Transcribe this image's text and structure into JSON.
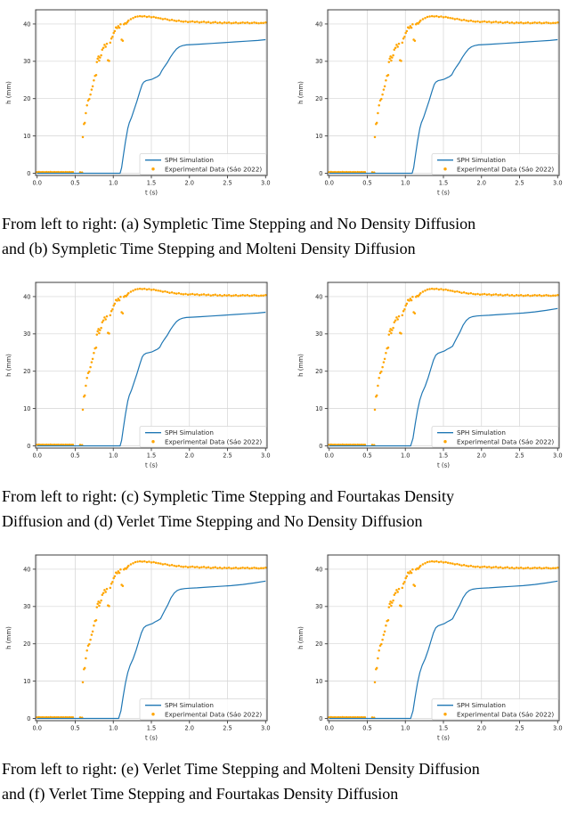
{
  "captions": [
    {
      "lines": [
        "From left to right: (a) Sympletic Time Stepping and No Density Diffusion",
        "and (b) Sympletic Time Stepping and Molteni Density Diffusion"
      ]
    },
    {
      "lines": [
        "From left to right: (c) Sympletic Time Stepping and Fourtakas Density",
        "Diffusion and (d) Verlet Time Stepping and No Density Diffusion"
      ]
    },
    {
      "lines": [
        "From left to right: (e) Verlet Time Stepping and Molteni Density Diffusion",
        "and (f) Verlet Time Stepping and Fourtakas Density Diffusion"
      ]
    }
  ],
  "chart_style": {
    "sim_color": "#1f77b4",
    "exp_color": "#FFA500",
    "grid_color": "#d4d4d4",
    "spine_color": "#3c3c3c",
    "tick_color": "#3c3c3c",
    "tick_label_color": "#262626",
    "legend_border": "#d5d5d5",
    "legend_bg": "#ffffff",
    "legend_text_color": "#262626"
  },
  "chart_data": [
    {
      "panel": "a",
      "type": "line+scatter",
      "xlabel": "t (s)",
      "ylabel": "h (mm)",
      "xlim": [
        -0.02,
        3.02
      ],
      "ylim": [
        -0.6,
        43.8
      ],
      "xticks": [
        0,
        0.5,
        1,
        1.5,
        2,
        2.5,
        3
      ],
      "xtick_labels": [
        "0.0",
        "0.5",
        "1.0",
        "1.5",
        "2.0",
        "2.5",
        "3.0"
      ],
      "yticks": [
        0,
        10,
        20,
        30,
        40
      ],
      "ytick_labels": [
        "0",
        "10",
        "20",
        "30",
        "40"
      ],
      "grid": true,
      "legend_position": "lower right",
      "legend": [
        "SPH Simulation",
        "Experimental Data (Sáo 2022)"
      ],
      "sim_series": "sim_symplectic",
      "exp_series": "experimental"
    },
    {
      "panel": "b",
      "type": "line+scatter",
      "xlabel": "t (s)",
      "ylabel": "h (mm)",
      "xlim": [
        -0.02,
        3.02
      ],
      "ylim": [
        -0.6,
        43.8
      ],
      "xticks": [
        0,
        0.5,
        1,
        1.5,
        2,
        2.5,
        3
      ],
      "xtick_labels": [
        "0.0",
        "0.5",
        "1.0",
        "1.5",
        "2.0",
        "2.5",
        "3.0"
      ],
      "yticks": [
        0,
        10,
        20,
        30,
        40
      ],
      "ytick_labels": [
        "0",
        "10",
        "20",
        "30",
        "40"
      ],
      "grid": true,
      "legend_position": "lower right",
      "legend": [
        "SPH Simulation",
        "Experimental Data (Sáo 2022)"
      ],
      "sim_series": "sim_symplectic",
      "exp_series": "experimental"
    },
    {
      "panel": "c",
      "type": "line+scatter",
      "xlabel": "t (s)",
      "ylabel": "h (mm)",
      "xlim": [
        -0.02,
        3.02
      ],
      "ylim": [
        -0.6,
        43.8
      ],
      "xticks": [
        0,
        0.5,
        1,
        1.5,
        2,
        2.5,
        3
      ],
      "xtick_labels": [
        "0.0",
        "0.5",
        "1.0",
        "1.5",
        "2.0",
        "2.5",
        "3.0"
      ],
      "yticks": [
        0,
        10,
        20,
        30,
        40
      ],
      "ytick_labels": [
        "0",
        "10",
        "20",
        "30",
        "40"
      ],
      "grid": true,
      "legend_position": "lower right",
      "legend": [
        "SPH Simulation",
        "Experimental Data (Sáo 2022)"
      ],
      "sim_series": "sim_symplectic",
      "exp_series": "experimental"
    },
    {
      "panel": "d",
      "type": "line+scatter",
      "xlabel": "t (s)",
      "ylabel": "h (mm)",
      "xlim": [
        -0.02,
        3.02
      ],
      "ylim": [
        -0.6,
        43.8
      ],
      "xticks": [
        0,
        0.5,
        1,
        1.5,
        2,
        2.5,
        3
      ],
      "xtick_labels": [
        "0.0",
        "0.5",
        "1.0",
        "1.5",
        "2.0",
        "2.5",
        "3.0"
      ],
      "yticks": [
        0,
        10,
        20,
        30,
        40
      ],
      "ytick_labels": [
        "0",
        "10",
        "20",
        "30",
        "40"
      ],
      "grid": true,
      "legend_position": "lower right",
      "legend": [
        "SPH Simulation",
        "Experimental Data (Sáo 2022)"
      ],
      "sim_series": "sim_verlet",
      "exp_series": "experimental"
    },
    {
      "panel": "e",
      "type": "line+scatter",
      "xlabel": "t (s)",
      "ylabel": "h (mm)",
      "xlim": [
        -0.02,
        3.02
      ],
      "ylim": [
        -0.6,
        43.8
      ],
      "xticks": [
        0,
        0.5,
        1,
        1.5,
        2,
        2.5,
        3
      ],
      "xtick_labels": [
        "0.0",
        "0.5",
        "1.0",
        "1.5",
        "2.0",
        "2.5",
        "3.0"
      ],
      "yticks": [
        0,
        10,
        20,
        30,
        40
      ],
      "ytick_labels": [
        "0",
        "10",
        "20",
        "30",
        "40"
      ],
      "grid": true,
      "legend_position": "lower right",
      "legend": [
        "SPH Simulation",
        "Experimental Data (Sáo 2022)"
      ],
      "sim_series": "sim_verlet",
      "exp_series": "experimental"
    },
    {
      "panel": "f",
      "type": "line+scatter",
      "xlabel": "t (s)",
      "ylabel": "h (mm)",
      "xlim": [
        -0.02,
        3.02
      ],
      "ylim": [
        -0.6,
        43.8
      ],
      "xticks": [
        0,
        0.5,
        1,
        1.5,
        2,
        2.5,
        3
      ],
      "xtick_labels": [
        "0.0",
        "0.5",
        "1.0",
        "1.5",
        "2.0",
        "2.5",
        "3.0"
      ],
      "yticks": [
        0,
        10,
        20,
        30,
        40
      ],
      "ytick_labels": [
        "0",
        "10",
        "20",
        "30",
        "40"
      ],
      "grid": true,
      "legend_position": "lower right",
      "legend": [
        "SPH Simulation",
        "Experimental Data (Sáo 2022)"
      ],
      "sim_series": "sim_verlet",
      "exp_series": "experimental"
    }
  ],
  "series": {
    "sim_symplectic": [
      [
        0.0,
        0
      ],
      [
        1.09,
        0
      ],
      [
        1.11,
        1.5
      ],
      [
        1.13,
        4.5
      ],
      [
        1.16,
        8.5
      ],
      [
        1.19,
        12.0
      ],
      [
        1.21,
        13.5
      ],
      [
        1.24,
        15.0
      ],
      [
        1.27,
        16.8
      ],
      [
        1.31,
        19.3
      ],
      [
        1.35,
        22.0
      ],
      [
        1.38,
        23.8
      ],
      [
        1.4,
        24.4
      ],
      [
        1.43,
        24.8
      ],
      [
        1.47,
        25.0
      ],
      [
        1.51,
        25.2
      ],
      [
        1.55,
        25.6
      ],
      [
        1.58,
        25.9
      ],
      [
        1.61,
        26.4
      ],
      [
        1.64,
        27.6
      ],
      [
        1.67,
        28.5
      ],
      [
        1.71,
        29.7
      ],
      [
        1.75,
        31.1
      ],
      [
        1.79,
        32.3
      ],
      [
        1.83,
        33.3
      ],
      [
        1.87,
        33.9
      ],
      [
        1.91,
        34.2
      ],
      [
        1.96,
        34.4
      ],
      [
        2.05,
        34.5
      ],
      [
        2.15,
        34.6
      ],
      [
        2.3,
        34.8
      ],
      [
        2.45,
        35.0
      ],
      [
        2.6,
        35.2
      ],
      [
        2.75,
        35.4
      ],
      [
        2.9,
        35.6
      ],
      [
        3.0,
        35.8
      ]
    ],
    "sim_verlet": [
      [
        0.0,
        0
      ],
      [
        1.07,
        0
      ],
      [
        1.1,
        2.0
      ],
      [
        1.13,
        6.0
      ],
      [
        1.16,
        9.5
      ],
      [
        1.19,
        12.3
      ],
      [
        1.22,
        14.2
      ],
      [
        1.26,
        16.0
      ],
      [
        1.3,
        18.3
      ],
      [
        1.34,
        21.0
      ],
      [
        1.37,
        23.0
      ],
      [
        1.4,
        24.3
      ],
      [
        1.43,
        24.8
      ],
      [
        1.47,
        25.1
      ],
      [
        1.51,
        25.4
      ],
      [
        1.55,
        25.9
      ],
      [
        1.59,
        26.3
      ],
      [
        1.62,
        26.7
      ],
      [
        1.65,
        27.9
      ],
      [
        1.68,
        29.1
      ],
      [
        1.72,
        30.6
      ],
      [
        1.76,
        32.4
      ],
      [
        1.8,
        33.6
      ],
      [
        1.84,
        34.3
      ],
      [
        1.88,
        34.6
      ],
      [
        1.94,
        34.8
      ],
      [
        2.0,
        34.9
      ],
      [
        2.1,
        35.0
      ],
      [
        2.25,
        35.2
      ],
      [
        2.4,
        35.4
      ],
      [
        2.55,
        35.6
      ],
      [
        2.7,
        35.9
      ],
      [
        2.85,
        36.3
      ],
      [
        3.0,
        36.8
      ]
    ],
    "experimental": [
      [
        0.0,
        0.3
      ],
      [
        0.025,
        0.35
      ],
      [
        0.05,
        0.3
      ],
      [
        0.075,
        0.32
      ],
      [
        0.1,
        0.28
      ],
      [
        0.125,
        0.33
      ],
      [
        0.15,
        0.3
      ],
      [
        0.175,
        0.35
      ],
      [
        0.2,
        0.3
      ],
      [
        0.225,
        0.32
      ],
      [
        0.25,
        0.28
      ],
      [
        0.275,
        0.33
      ],
      [
        0.3,
        0.3
      ],
      [
        0.325,
        0.34
      ],
      [
        0.35,
        0.3
      ],
      [
        0.375,
        0.32
      ],
      [
        0.4,
        0.29
      ],
      [
        0.425,
        0.33
      ],
      [
        0.45,
        0.3
      ],
      [
        0.47,
        0.31
      ],
      [
        0.565,
        0.25
      ],
      [
        0.59,
        0.2
      ],
      [
        0.6,
        9.7
      ],
      [
        0.615,
        13.2
      ],
      [
        0.625,
        13.5
      ],
      [
        0.64,
        16.1
      ],
      [
        0.655,
        18.2
      ],
      [
        0.67,
        19.5
      ],
      [
        0.685,
        19.9
      ],
      [
        0.7,
        21.1
      ],
      [
        0.715,
        22.4
      ],
      [
        0.73,
        23.3
      ],
      [
        0.745,
        24.9
      ],
      [
        0.76,
        26.1
      ],
      [
        0.775,
        26.3
      ],
      [
        0.785,
        29.8
      ],
      [
        0.795,
        30.7
      ],
      [
        0.805,
        31.3
      ],
      [
        0.815,
        30.2
      ],
      [
        0.825,
        31.0
      ],
      [
        0.84,
        31.6
      ],
      [
        0.855,
        33.1
      ],
      [
        0.87,
        33.6
      ],
      [
        0.885,
        34.4
      ],
      [
        0.9,
        33.9
      ],
      [
        0.915,
        34.7
      ],
      [
        0.93,
        30.3
      ],
      [
        0.945,
        30.1
      ],
      [
        0.96,
        35.0
      ],
      [
        0.975,
        36.1
      ],
      [
        0.99,
        36.6
      ],
      [
        1.005,
        37.6
      ],
      [
        1.02,
        38.1
      ],
      [
        1.035,
        39.1
      ],
      [
        1.05,
        38.9
      ],
      [
        1.065,
        39.4
      ],
      [
        1.08,
        39.0
      ],
      [
        1.095,
        39.9
      ],
      [
        1.11,
        35.8
      ],
      [
        1.125,
        35.5
      ],
      [
        1.14,
        39.9
      ],
      [
        1.155,
        40.2
      ],
      [
        1.17,
        40.1
      ],
      [
        1.185,
        40.5
      ],
      [
        1.2,
        40.9
      ],
      [
        1.23,
        41.3
      ],
      [
        1.26,
        41.6
      ],
      [
        1.29,
        41.9
      ],
      [
        1.32,
        42.0
      ],
      [
        1.35,
        42.1
      ],
      [
        1.38,
        42.0
      ],
      [
        1.41,
        42.1
      ],
      [
        1.44,
        41.9
      ],
      [
        1.47,
        42.0
      ],
      [
        1.5,
        41.8
      ],
      [
        1.53,
        41.9
      ],
      [
        1.56,
        41.7
      ],
      [
        1.59,
        41.6
      ],
      [
        1.62,
        41.5
      ],
      [
        1.65,
        41.3
      ],
      [
        1.68,
        41.4
      ],
      [
        1.71,
        41.2
      ],
      [
        1.74,
        41.0
      ],
      [
        1.77,
        41.1
      ],
      [
        1.8,
        40.9
      ],
      [
        1.83,
        40.8
      ],
      [
        1.86,
        40.9
      ],
      [
        1.89,
        40.7
      ],
      [
        1.92,
        40.6
      ],
      [
        1.95,
        40.7
      ],
      [
        1.98,
        40.5
      ],
      [
        2.01,
        40.6
      ],
      [
        2.04,
        40.7
      ],
      [
        2.07,
        40.5
      ],
      [
        2.1,
        40.6
      ],
      [
        2.13,
        40.4
      ],
      [
        2.16,
        40.5
      ],
      [
        2.19,
        40.6
      ],
      [
        2.22,
        40.4
      ],
      [
        2.25,
        40.5
      ],
      [
        2.28,
        40.3
      ],
      [
        2.31,
        40.4
      ],
      [
        2.34,
        40.5
      ],
      [
        2.37,
        40.3
      ],
      [
        2.4,
        40.4
      ],
      [
        2.43,
        40.2
      ],
      [
        2.46,
        40.4
      ],
      [
        2.49,
        40.3
      ],
      [
        2.52,
        40.4
      ],
      [
        2.55,
        40.2
      ],
      [
        2.58,
        40.3
      ],
      [
        2.61,
        40.4
      ],
      [
        2.64,
        40.2
      ],
      [
        2.67,
        40.3
      ],
      [
        2.7,
        40.4
      ],
      [
        2.73,
        40.3
      ],
      [
        2.76,
        40.4
      ],
      [
        2.79,
        40.2
      ],
      [
        2.82,
        40.3
      ],
      [
        2.85,
        40.4
      ],
      [
        2.88,
        40.3
      ],
      [
        2.91,
        40.2
      ],
      [
        2.94,
        40.3
      ],
      [
        2.97,
        40.3
      ],
      [
        3.0,
        40.4
      ]
    ]
  }
}
